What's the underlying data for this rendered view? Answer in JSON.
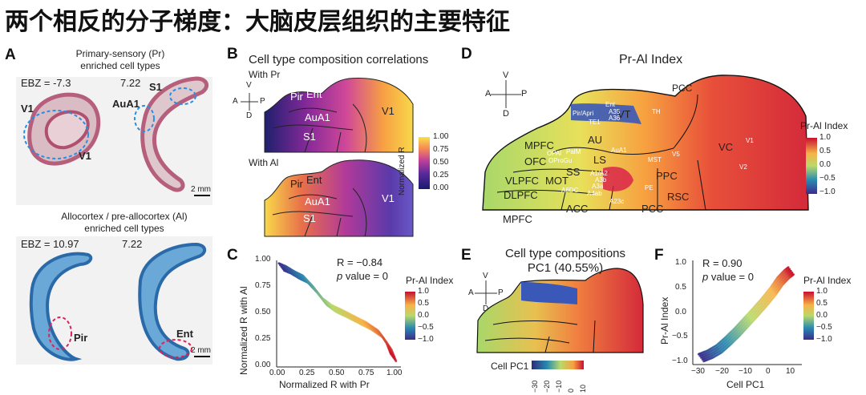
{
  "slide": {
    "title": "两个相反的分子梯度：大脑皮层组织的主要特征"
  },
  "panel_a": {
    "letter": "A",
    "top_caption_line1": "Primary-sensory (Pr)",
    "top_caption_line2": "enriched cell types",
    "ebz_top": "EBZ = -7.3",
    "ebz_top_right": "7.22",
    "label_v1_a": "V1",
    "label_v1_b": "V1",
    "label_auA1": "AuA1",
    "label_s1": "S1",
    "scale_top": "2 mm",
    "bottom_caption_line1": "Allocortex / pre-allocortex (Al)",
    "bottom_caption_line2": "enriched cell types",
    "ebz_bottom": "EBZ = 10.97",
    "ebz_bottom_right": "7.22",
    "label_pir": "Pir",
    "label_ent": "Ent",
    "scale_bottom": "2 mm"
  },
  "panel_b": {
    "letter": "B",
    "title": "Cell type composition correlations",
    "with_pr": "With Pr",
    "with_al": "With Al",
    "compass": {
      "v": "V",
      "a": "A",
      "p": "P",
      "d": "D"
    },
    "regions_top": [
      "Pir",
      "Ent",
      "AuA1",
      "S1",
      "V1"
    ],
    "regions_bottom": [
      "Pir",
      "Ent",
      "AuA1",
      "S1",
      "V1"
    ],
    "colorbar_title": "Normalized R",
    "colorbar_ticks": [
      "1.00",
      "0.75",
      "0.50",
      "0.25",
      "0.00"
    ],
    "colors": [
      "#1a1a6e",
      "#5a2a9a",
      "#b03a9a",
      "#e8608a",
      "#f59a4a",
      "#f8e04a"
    ]
  },
  "panel_c": {
    "letter": "C",
    "r_text": "R = −0.84",
    "p_label": "p",
    "p_rest": " value = 0",
    "legend_title": "Pr-Al Index",
    "legend_ticks": [
      "1.0",
      "0.5",
      "0.0",
      "−0.5",
      "−1.0"
    ]
  },
  "panel_d": {
    "letter": "D",
    "title": "Pr-Al Index",
    "compass": {
      "v": "V",
      "a": "A",
      "p": "P",
      "d": "D"
    },
    "regions_large": [
      "PCC",
      "VT",
      "AU",
      "LS",
      "MPFC",
      "OFC",
      "VLPFC",
      "DLPFC",
      "MOT",
      "SS",
      "PPC",
      "RSC",
      "ACC",
      "PCC",
      "MPFC",
      "VC"
    ],
    "regions_small": [
      "Ent",
      "A35",
      "A36",
      "TH",
      "Pir/Apri",
      "TE1",
      "OPAl",
      "PalM",
      "OProGu",
      "AuA1",
      "MST",
      "V5",
      "V1",
      "V2",
      "A1/A2",
      "A3b",
      "A3a",
      "A4ab",
      "A6DC",
      "PE",
      "A23c"
    ],
    "legend_title": "Pr-Al Index",
    "legend_ticks": [
      "1.0",
      "0.5",
      "0.0",
      "−0.5",
      "−1.0"
    ]
  },
  "panel_e": {
    "letter": "E",
    "title_line1": "Cell type compositions",
    "title_line2": "PC1 (40.55%)",
    "compass": {
      "v": "V",
      "a": "A",
      "p": "P",
      "d": "D"
    },
    "colorbar_label": "Cell PC1",
    "colorbar_ticks": [
      "−30",
      "−20",
      "−10",
      "0",
      "10"
    ]
  },
  "panel_f": {
    "letter": "F",
    "r_text": "R = 0.90",
    "p_label": "p",
    "p_rest": " value = 0",
    "legend_title": "Pr-Al Index",
    "legend_ticks": [
      "1.0",
      "0.5",
      "0.0",
      "−0.5",
      "−1.0"
    ]
  },
  "chart_data": [
    {
      "type": "scatter",
      "panel": "C",
      "xlabel": "Normalized R with Pr",
      "ylabel": "Normalized R with Al",
      "xlim": [
        0,
        1
      ],
      "ylim": [
        0,
        1
      ],
      "xticks": [
        "0.00",
        "0.25",
        "0.50",
        "0.75",
        "1.00"
      ],
      "yticks": [
        "0.00",
        "0.25",
        "0.50",
        "0.75",
        "1.00"
      ],
      "color_by": "Pr-Al Index",
      "grid": false,
      "trend": [
        {
          "x": 0.02,
          "y": 0.96
        },
        {
          "x": 0.08,
          "y": 0.93
        },
        {
          "x": 0.15,
          "y": 0.88
        },
        {
          "x": 0.22,
          "y": 0.84
        },
        {
          "x": 0.3,
          "y": 0.74
        },
        {
          "x": 0.38,
          "y": 0.62
        },
        {
          "x": 0.46,
          "y": 0.55
        },
        {
          "x": 0.55,
          "y": 0.5
        },
        {
          "x": 0.65,
          "y": 0.44
        },
        {
          "x": 0.75,
          "y": 0.38
        },
        {
          "x": 0.85,
          "y": 0.3
        },
        {
          "x": 0.92,
          "y": 0.18
        },
        {
          "x": 0.96,
          "y": 0.06
        }
      ]
    },
    {
      "type": "scatter",
      "panel": "F",
      "xlabel": "Cell PC1",
      "ylabel": "Pr-Al Index",
      "xlim": [
        -33,
        14
      ],
      "ylim": [
        -1.1,
        1.1
      ],
      "xticks": [
        "−30",
        "−20",
        "−10",
        "0",
        "10"
      ],
      "yticks": [
        "−1.0",
        "−0.5",
        "0.0",
        "0.5",
        "1.0"
      ],
      "color_by": "Pr-Al Index",
      "grid": false,
      "trend": [
        {
          "x": -30,
          "y": -1.0
        },
        {
          "x": -26,
          "y": -0.92
        },
        {
          "x": -22,
          "y": -0.8
        },
        {
          "x": -18,
          "y": -0.62
        },
        {
          "x": -14,
          "y": -0.42
        },
        {
          "x": -10,
          "y": -0.2
        },
        {
          "x": -6,
          "y": 0.02
        },
        {
          "x": -2,
          "y": 0.25
        },
        {
          "x": 2,
          "y": 0.5
        },
        {
          "x": 5,
          "y": 0.72
        },
        {
          "x": 8,
          "y": 0.88
        },
        {
          "x": 10,
          "y": 0.96
        }
      ]
    }
  ]
}
